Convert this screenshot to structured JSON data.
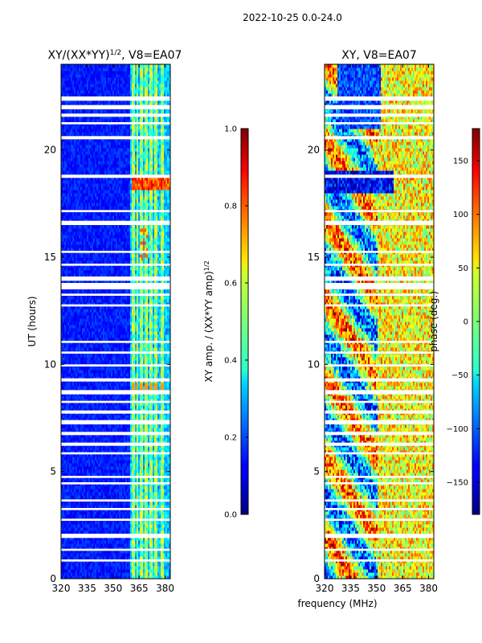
{
  "figure_title": "2022-10-25 0.0-24.0",
  "xlabel": "frequency (MHz)",
  "chart_data": [
    {
      "type": "heatmap",
      "title": "XY/(XX*YY)",
      "title_exponent": "1/2",
      "title_suffix": ", V8=EA07",
      "ylabel": "UT (hours)",
      "xlim": [
        320,
        383
      ],
      "ylim": [
        0,
        24
      ],
      "xticks": [
        "320",
        "335",
        "350",
        "365",
        "380"
      ],
      "xtick_values": [
        320,
        335,
        350,
        365,
        380
      ],
      "yticks": [
        "0",
        "5",
        "10",
        "15",
        "20"
      ],
      "ytick_values": [
        0,
        5,
        10,
        15,
        20
      ],
      "colorbar": {
        "label_main": "XY amp. / (XX*YY amp)",
        "label_exponent": "1/2",
        "range": [
          0.0,
          1.0
        ],
        "ticks": [
          "0.0",
          "0.2",
          "0.4",
          "0.6",
          "0.8",
          "1.0"
        ],
        "tick_values": [
          0.0,
          0.2,
          0.4,
          0.6,
          0.8,
          1.0
        ],
        "colormap": "jet"
      },
      "bright_channels_mhz": [
        362,
        364,
        366,
        369,
        372,
        375,
        378
      ],
      "flag_gaps_hours": [
        [
          22.3,
          22.5
        ],
        [
          21.9,
          22.1
        ],
        [
          21.55,
          21.7
        ],
        [
          21.2,
          21.3
        ],
        [
          20.5,
          20.65
        ],
        [
          18.7,
          18.85
        ],
        [
          17.1,
          17.2
        ],
        [
          16.5,
          16.7
        ],
        [
          15.2,
          15.3
        ],
        [
          14.6,
          14.7
        ],
        [
          13.9,
          14.1
        ],
        [
          13.5,
          13.8
        ],
        [
          13.2,
          13.3
        ],
        [
          12.7,
          12.8
        ],
        [
          11.0,
          11.1
        ],
        [
          10.5,
          10.6
        ],
        [
          9.9,
          10.0
        ],
        [
          9.2,
          9.35
        ],
        [
          8.6,
          8.8
        ],
        [
          8.2,
          8.3
        ],
        [
          7.7,
          7.85
        ],
        [
          7.2,
          7.4
        ],
        [
          6.7,
          6.85
        ],
        [
          6.2,
          6.35
        ],
        [
          5.8,
          5.9
        ],
        [
          4.7,
          4.8
        ],
        [
          4.4,
          4.5
        ],
        [
          3.6,
          3.7
        ],
        [
          3.2,
          3.3
        ],
        [
          2.7,
          2.8
        ],
        [
          1.9,
          2.1
        ],
        [
          1.3,
          1.4
        ],
        [
          0.8,
          0.9
        ]
      ]
    },
    {
      "type": "heatmap",
      "title": "XY, V8=EA07",
      "ylabel": "",
      "xlim": [
        320,
        383
      ],
      "ylim": [
        0,
        24
      ],
      "xticks": [
        "320",
        "335",
        "350",
        "365",
        "380"
      ],
      "xtick_values": [
        320,
        335,
        350,
        365,
        380
      ],
      "yticks": [
        "0",
        "5",
        "10",
        "15",
        "20"
      ],
      "ytick_values": [
        0,
        5,
        10,
        15,
        20
      ],
      "colorbar": {
        "label_main": "phase (deg.)",
        "range": [
          -180,
          180
        ],
        "ticks": [
          "−150",
          "−100",
          "−50",
          "0",
          "50",
          "100",
          "150"
        ],
        "tick_values": [
          -150,
          -100,
          -50,
          0,
          50,
          100,
          150
        ],
        "colormap": "jet"
      },
      "flag_gaps_hours": [
        [
          22.3,
          22.5
        ],
        [
          21.9,
          22.1
        ],
        [
          21.55,
          21.7
        ],
        [
          21.2,
          21.3
        ],
        [
          20.5,
          20.65
        ],
        [
          18.7,
          18.85
        ],
        [
          17.1,
          17.2
        ],
        [
          16.5,
          16.7
        ],
        [
          15.2,
          15.3
        ],
        [
          14.6,
          14.7
        ],
        [
          13.9,
          14.1
        ],
        [
          13.5,
          13.8
        ],
        [
          13.2,
          13.3
        ],
        [
          12.7,
          12.8
        ],
        [
          11.0,
          11.1
        ],
        [
          10.5,
          10.6
        ],
        [
          9.9,
          10.0
        ],
        [
          9.2,
          9.35
        ],
        [
          8.6,
          8.8
        ],
        [
          8.2,
          8.3
        ],
        [
          7.7,
          7.85
        ],
        [
          7.2,
          7.4
        ],
        [
          6.7,
          6.85
        ],
        [
          6.2,
          6.35
        ],
        [
          5.8,
          5.9
        ],
        [
          4.7,
          4.8
        ],
        [
          4.4,
          4.5
        ],
        [
          3.6,
          3.7
        ],
        [
          3.2,
          3.3
        ],
        [
          2.7,
          2.8
        ],
        [
          1.9,
          2.1
        ],
        [
          1.3,
          1.4
        ],
        [
          0.8,
          0.9
        ]
      ]
    }
  ]
}
